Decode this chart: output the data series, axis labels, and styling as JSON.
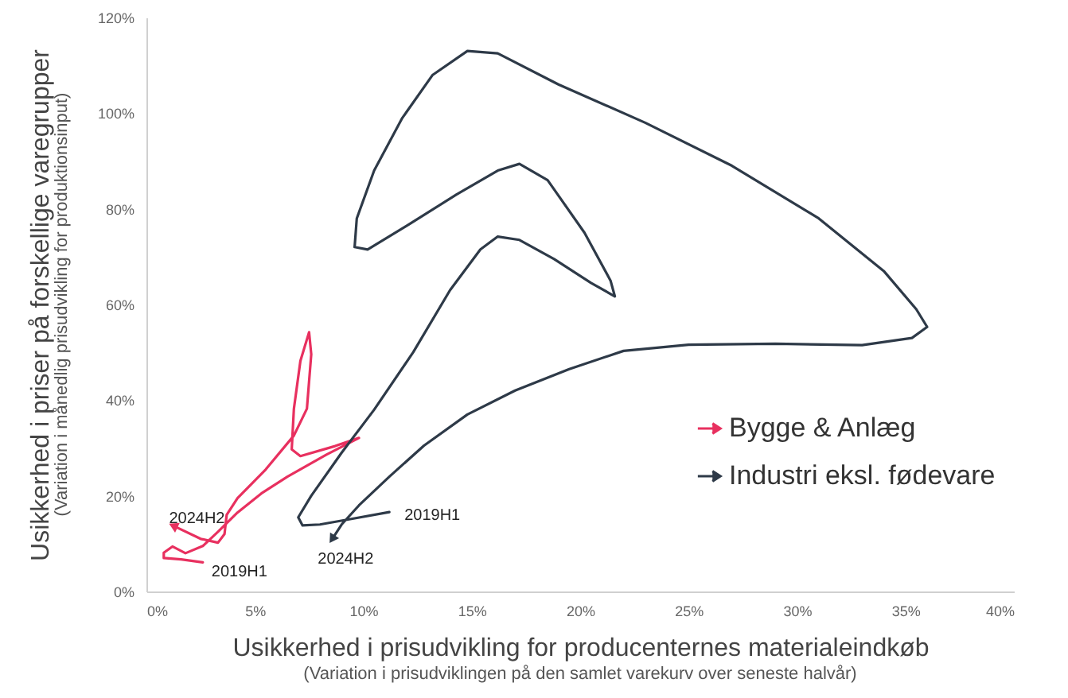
{
  "chart_data": {
    "type": "line",
    "xlabel": "Usikkerhed i prisudvikling for producenternes materialeindkøb\n(Variation i prisudviklingen på den samlet varekurv over seneste halvår)",
    "ylabel": "Usikkerhed i priser på forskellige varegrupper\n(Variation i månedlig prisudvikling for produktionsinput)",
    "xlim": [
      0,
      40
    ],
    "ylim": [
      0,
      120
    ],
    "xticks": [
      {
        "value": 0,
        "label": "0%"
      },
      {
        "value": 5,
        "label": "5%"
      },
      {
        "value": 10,
        "label": "10%"
      },
      {
        "value": 15,
        "label": "15%"
      },
      {
        "value": 20,
        "label": "20%"
      },
      {
        "value": 25,
        "label": "25%"
      },
      {
        "value": 30,
        "label": "30%"
      },
      {
        "value": 35,
        "label": "35%"
      },
      {
        "value": 40,
        "label": "40%"
      }
    ],
    "yticks": [
      {
        "value": 0,
        "label": "0%"
      },
      {
        "value": 20,
        "label": "20%"
      },
      {
        "value": 40,
        "label": "40%"
      },
      {
        "value": 60,
        "label": "60%"
      },
      {
        "value": 80,
        "label": "80%"
      },
      {
        "value": 100,
        "label": "100%"
      },
      {
        "value": 120,
        "label": "120%"
      }
    ],
    "grid": false,
    "legend": "bottom right",
    "marker": "none",
    "line_style": "solid",
    "series": [
      {
        "name": "Bygge & Anlæg",
        "color": "#e8305f",
        "x": [
          2.6,
          1.6,
          0.8,
          0.8,
          1.2,
          1.8,
          2.6,
          3.3,
          4.2,
          5.3,
          6.5,
          8.3,
          9.8,
          8.7,
          7.1,
          6.7,
          6.8,
          7.1,
          7.5,
          7.6,
          7.4,
          6.8,
          5.5,
          4.2,
          3.7,
          3.6,
          3.3,
          2.5,
          1.3
        ],
        "values": [
          6.1,
          6.7,
          7.0,
          8.1,
          9.4,
          8.0,
          9.5,
          12.5,
          16.5,
          20.5,
          24.0,
          28.6,
          32.1,
          30.4,
          28.3,
          29.7,
          38.2,
          48.2,
          54.2,
          49.6,
          38.2,
          32.6,
          25.5,
          19.5,
          16.0,
          12.0,
          10.2,
          11.0,
          13.6
        ]
      },
      {
        "name": "Industri eksl. fødevare",
        "color": "#2e3a48",
        "x": [
          11.2,
          9.5,
          8.0,
          7.2,
          7.0,
          7.6,
          9.0,
          10.5,
          12.3,
          14.0,
          15.4,
          16.2,
          17.2,
          18.8,
          20.5,
          21.6,
          21.4,
          20.2,
          18.5,
          17.2,
          16.2,
          14.3,
          12.2,
          10.2,
          9.6,
          9.7,
          10.5,
          11.8,
          13.2,
          14.8,
          16.2,
          19,
          23,
          27,
          31,
          34,
          35.5,
          36,
          35.3,
          33,
          29,
          25,
          22,
          19.5,
          17,
          14.8,
          12.8,
          11.2,
          9.8,
          9.0,
          8.6
        ],
        "values": [
          16.6,
          15.2,
          14.0,
          13.8,
          15.5,
          20,
          29,
          38,
          50,
          63,
          71.5,
          74.2,
          73.5,
          69.5,
          64.5,
          61.7,
          65,
          75,
          86,
          89.4,
          88,
          83,
          77,
          71.5,
          72,
          78,
          88,
          99,
          108,
          113,
          112.5,
          106,
          98,
          89,
          78,
          67,
          59,
          55.3,
          53,
          51.5,
          51.8,
          51.6,
          50.3,
          46.5,
          42,
          37,
          30.5,
          24,
          18,
          14,
          11.2
        ]
      }
    ],
    "annotations": [
      {
        "text": "2019H1",
        "x": 2.6,
        "y": 6.1
      },
      {
        "text": "2024H2",
        "x": 1.3,
        "y": 13.6
      },
      {
        "text": "2019H1",
        "x": 11.2,
        "y": 16.6
      },
      {
        "text": "2024H2",
        "x": 8.6,
        "y": 11.2
      }
    ]
  }
}
